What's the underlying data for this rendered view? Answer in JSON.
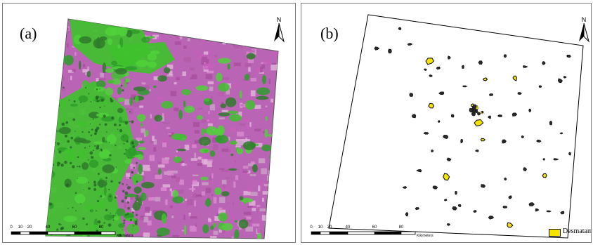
{
  "panels": {
    "a": {
      "label": "(a)",
      "north_label": "N"
    },
    "b": {
      "label": "(b)",
      "north_label": "N"
    }
  },
  "scalebar": {
    "ticks": [
      "0",
      "10",
      "20",
      "40",
      "60",
      "80"
    ],
    "unit": "Kilometers"
  },
  "legend": {
    "label": "Desmatamento",
    "swatch_color": "#f5e400"
  },
  "colors": {
    "vegetation_green": "#3fc12e",
    "cleared_magenta": "#c25bb8",
    "patch_dark": "#2a2a2a",
    "patch_yellow": "#f5e400"
  }
}
